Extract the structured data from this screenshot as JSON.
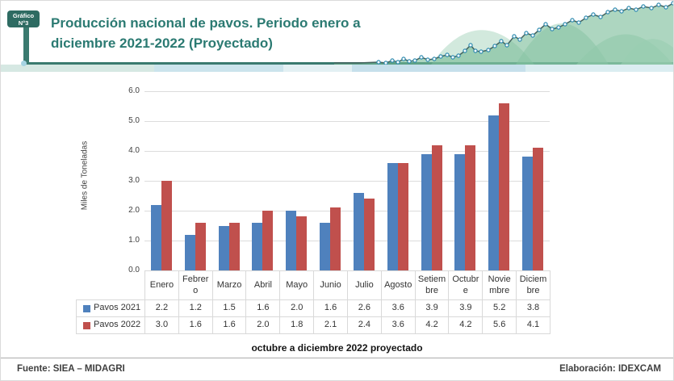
{
  "header": {
    "badge": {
      "line1": "Gráfico",
      "line2": "N°3"
    },
    "title_line1": "Producción nacional de pavos. Periodo enero a",
    "title_line2": "diciembre 2021-2022 (Proyectado)"
  },
  "chart_data": {
    "type": "bar",
    "title": "Producción nacional de pavos. Periodo enero a diciembre 2021-2022 (Proyectado)",
    "ylabel": "Miles de Toneladas",
    "xlabel": "",
    "ylim": [
      0,
      6
    ],
    "ytick_interval": 1.0,
    "grid": "horizontal",
    "legend_position": "table-rows-left",
    "value_format": "one-decimal",
    "categories": [
      "Enero",
      "Febrero",
      "Marzo",
      "Abril",
      "Mayo",
      "Junio",
      "Julio",
      "Agosto",
      "Setiembre",
      "Octubre",
      "Noviembre",
      "Diciembre"
    ],
    "category_display_lines": [
      [
        "Enero"
      ],
      [
        "Febrer",
        "o"
      ],
      [
        "Marzo"
      ],
      [
        "Abril"
      ],
      [
        "Mayo"
      ],
      [
        "Junio"
      ],
      [
        "Julio"
      ],
      [
        "Agosto"
      ],
      [
        "Setiem",
        "bre"
      ],
      [
        "Octubr",
        "e"
      ],
      [
        "Novie",
        "mbre"
      ],
      [
        "Diciem",
        "bre"
      ]
    ],
    "series": [
      {
        "name": "Pavos 2021",
        "color": "#4F81BD",
        "values": [
          2.2,
          1.2,
          1.5,
          1.6,
          2.0,
          1.6,
          2.6,
          3.6,
          3.9,
          3.9,
          5.2,
          3.8
        ]
      },
      {
        "name": "Pavos 2022",
        "color": "#C0504D",
        "values": [
          3.0,
          1.6,
          1.6,
          2.0,
          1.8,
          2.1,
          2.4,
          3.6,
          4.2,
          4.2,
          5.6,
          4.1
        ]
      }
    ]
  },
  "footer": {
    "note": "octubre a diciembre 2022 proyectado",
    "source": "Fuente: SIEA – MIDAGRI",
    "elaboration": "Elaboración: IDEXCAM"
  },
  "colors": {
    "accent_teal": "#3A7A6F",
    "badge_bg": "#2E6B62",
    "title_text": "#2B7A72",
    "series_2021": "#4F81BD",
    "series_2022": "#C0504D",
    "gridline": "#DCDCDC",
    "table_border": "#D9D9D9",
    "deco_area_green": "#76BB96",
    "deco_marker_blue": "#2F8BB0"
  }
}
